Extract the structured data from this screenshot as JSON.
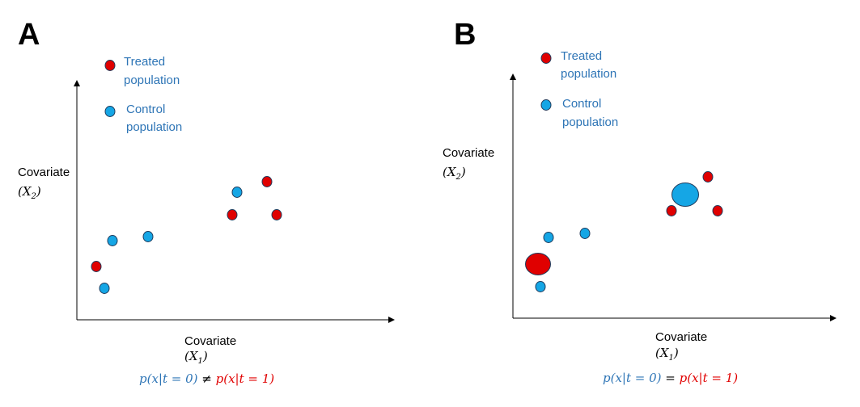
{
  "colors": {
    "treated": "#e00000",
    "control": "#15a6e5",
    "legend_text": "#2e75b6",
    "axis": "#000000",
    "marker_stroke": "#1f3b5c"
  },
  "panels": [
    {
      "letter": "A",
      "legend": {
        "treated_line1": "Treated",
        "treated_line2": "population",
        "control_line1": "Control",
        "control_line2": "population"
      },
      "y_axis": {
        "label": "Covariate",
        "var": "(X",
        "sub": "2",
        "close": ")"
      },
      "x_axis": {
        "label": "Covariate",
        "var": "(X",
        "sub": "1",
        "close": ")"
      },
      "formula": {
        "left": "p(x|t = 0)",
        "op": " ≠ ",
        "right": "p(x|t = 1)"
      }
    },
    {
      "letter": "B",
      "legend": {
        "treated_line1": "Treated",
        "treated_line2": "population",
        "control_line1": "Control",
        "control_line2": "population"
      },
      "y_axis": {
        "label": "Covariate",
        "var": "(X",
        "sub": "2",
        "close": ")"
      },
      "x_axis": {
        "label": "Covariate",
        "var": "(X",
        "sub": "1",
        "close": ")"
      },
      "formula": {
        "left": "p(x|t = 0)",
        "op": " = ",
        "right": "p(x|t = 1)"
      }
    }
  ]
}
